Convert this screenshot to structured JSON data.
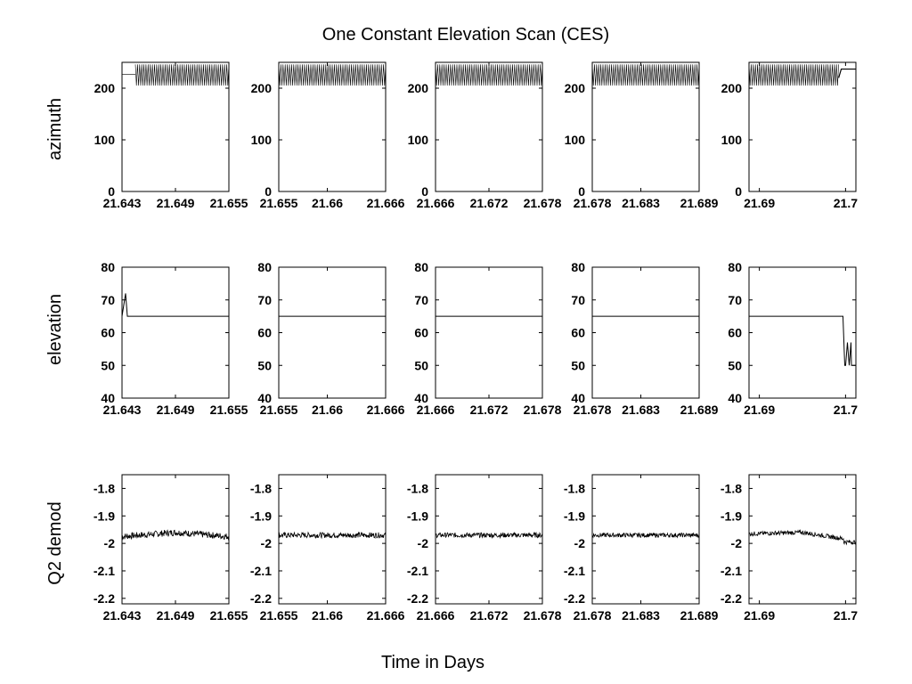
{
  "chart_data": {
    "type": "line",
    "title": "One Constant Elevation Scan (CES)",
    "xlabel": "Time in Days",
    "rows": [
      {
        "key": "azimuth",
        "ylabel": "azimuth",
        "ylim": [
          0,
          250
        ],
        "yticks": [
          "0",
          "100",
          "200"
        ],
        "ytick_values": [
          0,
          100,
          200
        ]
      },
      {
        "key": "elevation",
        "ylabel": "elevation",
        "ylim": [
          40,
          80
        ],
        "yticks": [
          "40",
          "50",
          "60",
          "70",
          "80"
        ],
        "ytick_values": [
          40,
          50,
          60,
          70,
          80
        ]
      },
      {
        "key": "q2",
        "ylabel": "Q2 demod",
        "ylim": [
          -2.22,
          -1.75
        ],
        "yticks": [
          "-2.2",
          "-2.1",
          "-2",
          "-1.9",
          "-1.8"
        ],
        "ytick_values": [
          -2.2,
          -2.1,
          -2.0,
          -1.9,
          -1.8
        ]
      }
    ],
    "columns": [
      {
        "xlim": [
          21.643,
          21.655
        ],
        "xticks": [
          "21.643",
          "21.649",
          "21.655"
        ],
        "xtick_values": [
          21.643,
          21.649,
          21.655
        ],
        "azimuth": {
          "start_flat": 227,
          "scan_from": 21.6445,
          "scan_to": 21.655,
          "scan_min": 205,
          "scan_max": 246,
          "end_flat": null,
          "end_from": null
        },
        "elevation": {
          "level": 65,
          "spike_x": 21.6434,
          "spike_max": 72
        },
        "q2": {
          "mean": [
            -1.975,
            -1.96,
            -1.975
          ],
          "noise": 0.012
        }
      },
      {
        "xlim": [
          21.655,
          21.666
        ],
        "xticks": [
          "21.655",
          "21.66",
          "21.666"
        ],
        "xtick_values": [
          21.655,
          21.66,
          21.666
        ],
        "azimuth": {
          "start_flat": null,
          "scan_from": 21.655,
          "scan_to": 21.666,
          "scan_min": 205,
          "scan_max": 246,
          "end_flat": null,
          "end_from": null
        },
        "elevation": {
          "level": 65
        },
        "q2": {
          "mean": [
            -1.97,
            -1.97,
            -1.97
          ],
          "noise": 0.01
        }
      },
      {
        "xlim": [
          21.666,
          21.678
        ],
        "xticks": [
          "21.666",
          "21.672",
          "21.678"
        ],
        "xtick_values": [
          21.666,
          21.672,
          21.678
        ],
        "azimuth": {
          "start_flat": null,
          "scan_from": 21.666,
          "scan_to": 21.678,
          "scan_min": 205,
          "scan_max": 246,
          "end_flat": null,
          "end_from": null
        },
        "elevation": {
          "level": 65
        },
        "q2": {
          "mean": [
            -1.97,
            -1.97,
            -1.97
          ],
          "noise": 0.009
        }
      },
      {
        "xlim": [
          21.678,
          21.689
        ],
        "xticks": [
          "21.678",
          "21.683",
          "21.689"
        ],
        "xtick_values": [
          21.678,
          21.683,
          21.689
        ],
        "azimuth": {
          "start_flat": null,
          "scan_from": 21.678,
          "scan_to": 21.689,
          "scan_min": 205,
          "scan_max": 246,
          "end_flat": null,
          "end_from": null
        },
        "elevation": {
          "level": 65
        },
        "q2": {
          "mean": [
            -1.97,
            -1.97,
            -1.97
          ],
          "noise": 0.008
        }
      },
      {
        "xlim": [
          21.6888,
          21.7012
        ],
        "xticks": [
          "21.69",
          "21.7"
        ],
        "xtick_values": [
          21.69,
          21.7
        ],
        "azimuth": {
          "start_flat": null,
          "scan_from": 21.6888,
          "scan_to": 21.6992,
          "scan_min": 205,
          "scan_max": 246,
          "end_flat": 237,
          "end_from": 21.6995
        },
        "elevation": {
          "level": 65,
          "drop_x": 21.6997,
          "drop_min": 50,
          "drop_max": 57,
          "end_level": 50
        },
        "q2": {
          "mean": [
            -1.965,
            -1.96,
            -1.99
          ],
          "noise": 0.008,
          "step_x": 21.6998,
          "step_to": -1.995
        }
      }
    ],
    "grid": false,
    "legend": "none"
  }
}
